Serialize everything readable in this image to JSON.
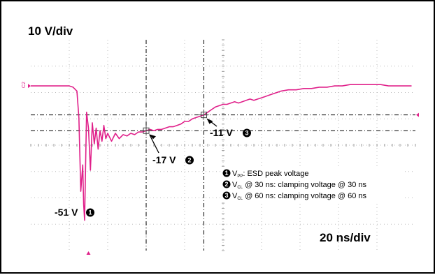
{
  "scope_settings": {
    "vertical_scale": "10 V/div",
    "horizontal_scale": "20 ns/div",
    "channel_marker": "C2"
  },
  "colors": {
    "trace": "#e0208a",
    "grid": "#000000",
    "plot_background": "#ffffff"
  },
  "chart_data": {
    "type": "line",
    "title": "",
    "xlabel": "",
    "ylabel": "",
    "x_unit": "ns",
    "y_unit": "V",
    "xlim": [
      -30,
      170
    ],
    "ylim": [
      -62.5,
      17.5
    ],
    "grid": true,
    "grid_divisions": {
      "x": 10,
      "y": 8
    },
    "series": [
      {
        "values": [
          [
            -30,
            0
          ],
          [
            -20,
            0
          ],
          [
            -10,
            0
          ],
          [
            -8,
            -0.5
          ],
          [
            -6,
            -2
          ],
          [
            -5,
            -12
          ],
          [
            -4,
            -40
          ],
          [
            -3,
            -30
          ],
          [
            -2.5,
            -45
          ],
          [
            -2,
            -51
          ],
          [
            -1.5,
            -30
          ],
          [
            -1,
            -10
          ],
          [
            0,
            -16
          ],
          [
            1,
            -32
          ],
          [
            2,
            -14
          ],
          [
            3,
            -22
          ],
          [
            4,
            -16
          ],
          [
            5,
            -24
          ],
          [
            6,
            -17
          ],
          [
            7,
            -21
          ],
          [
            8,
            -15
          ],
          [
            9,
            -20
          ],
          [
            10,
            -18
          ],
          [
            12,
            -21
          ],
          [
            14,
            -18
          ],
          [
            16,
            -20
          ],
          [
            18,
            -18.5
          ],
          [
            20,
            -19
          ],
          [
            22,
            -18
          ],
          [
            24,
            -18.5
          ],
          [
            26,
            -17.5
          ],
          [
            28,
            -17.5
          ],
          [
            30,
            -17
          ],
          [
            32,
            -16.5
          ],
          [
            34,
            -17
          ],
          [
            36,
            -16.5
          ],
          [
            38,
            -16.5
          ],
          [
            40,
            -16
          ],
          [
            42,
            -15.5
          ],
          [
            44,
            -15.5
          ],
          [
            46,
            -15
          ],
          [
            48,
            -14.5
          ],
          [
            50,
            -13.5
          ],
          [
            52,
            -13.5
          ],
          [
            54,
            -12.5
          ],
          [
            56,
            -12
          ],
          [
            58,
            -11.5
          ],
          [
            60,
            -11
          ],
          [
            62,
            -10
          ],
          [
            64,
            -9
          ],
          [
            66,
            -8
          ],
          [
            68,
            -7.5
          ],
          [
            70,
            -7
          ],
          [
            72,
            -7
          ],
          [
            74,
            -6.5
          ],
          [
            76,
            -6
          ],
          [
            78,
            -6.5
          ],
          [
            80,
            -6
          ],
          [
            82,
            -5.5
          ],
          [
            84,
            -5
          ],
          [
            86,
            -5.5
          ],
          [
            88,
            -5
          ],
          [
            90,
            -4.5
          ],
          [
            92,
            -4
          ],
          [
            94,
            -3.5
          ],
          [
            96,
            -3
          ],
          [
            98,
            -2.5
          ],
          [
            100,
            -2
          ],
          [
            104,
            -1.5
          ],
          [
            108,
            -1.5
          ],
          [
            112,
            -1
          ],
          [
            116,
            -1
          ],
          [
            120,
            -0.5
          ],
          [
            124,
            -0.5
          ],
          [
            128,
            0
          ],
          [
            132,
            0
          ],
          [
            136,
            0.5
          ],
          [
            140,
            0.5
          ],
          [
            144,
            0.5
          ],
          [
            148,
            0.5
          ],
          [
            152,
            0.5
          ],
          [
            156,
            0
          ],
          [
            160,
            0
          ],
          [
            164,
            0
          ],
          [
            168,
            0
          ]
        ]
      }
    ],
    "cursors": [
      {
        "time": 30,
        "voltage": -17
      },
      {
        "time": 60,
        "voltage": -11
      }
    ],
    "annotations": [
      {
        "text": "-51 V",
        "marker": "1"
      },
      {
        "text": "-17 V",
        "marker": "2"
      },
      {
        "text": "-11 V",
        "marker": "3"
      }
    ],
    "legend": {
      "placement": "bottom-right",
      "entries": [
        {
          "marker": "1",
          "symbol": "V",
          "subscript": "PP",
          "text": ": ESD peak voltage"
        },
        {
          "marker": "2",
          "symbol": "V",
          "subscript": "CL",
          "text": " @ 30 ns: clamping voltage @ 30 ns"
        },
        {
          "marker": "3",
          "symbol": "V",
          "subscript": "CL",
          "text": " @ 60 ns: clamping voltage @ 60 ns"
        }
      ]
    }
  }
}
